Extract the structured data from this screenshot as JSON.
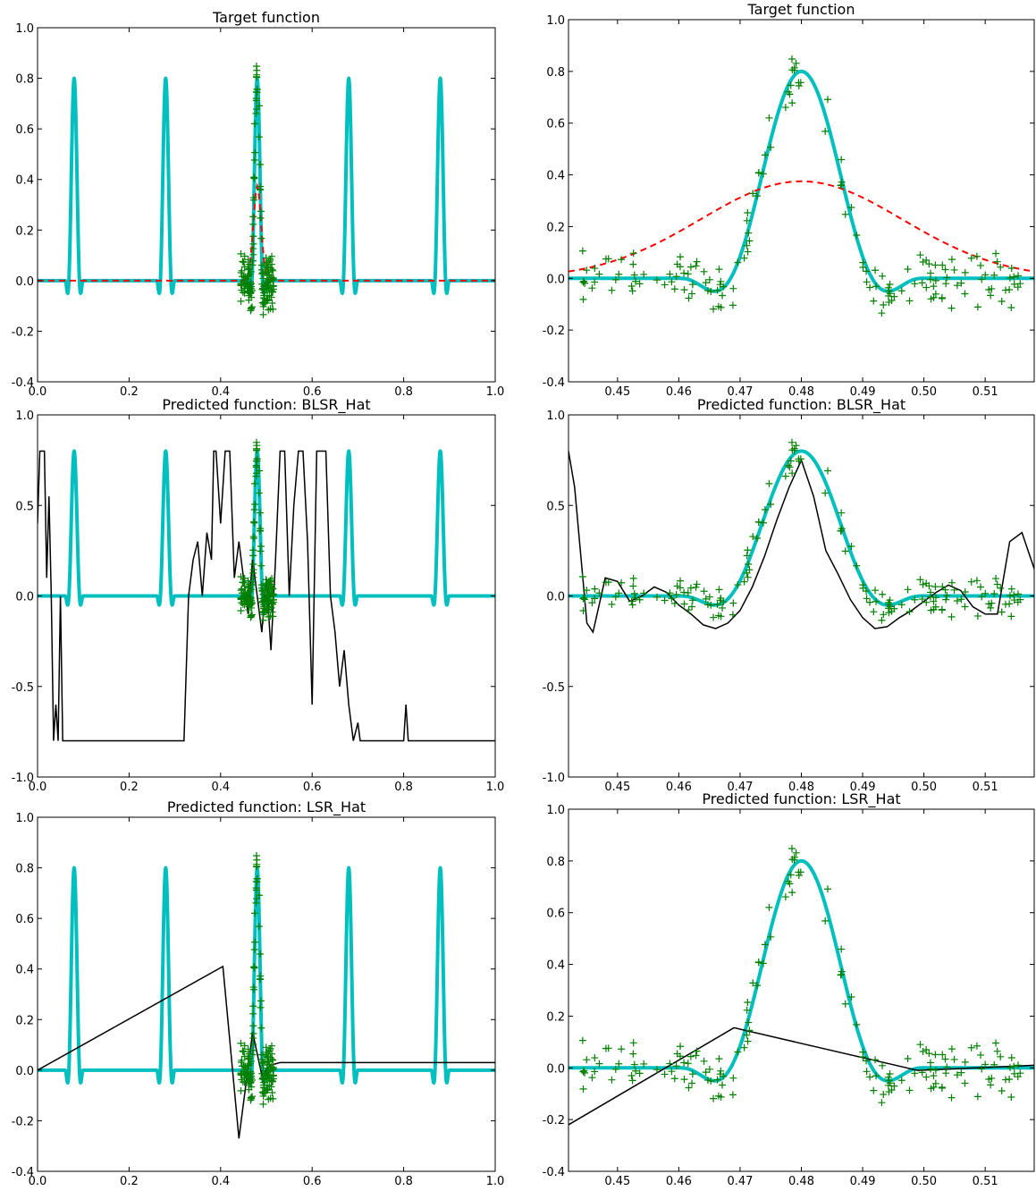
{
  "colors": {
    "target": "#00bfbf",
    "prediction": "#000000",
    "samples": "#008000",
    "gaussian": "#ff0000",
    "axes": "#000000",
    "background": "#ffffff"
  },
  "chart_data": [
    {
      "type": "line",
      "title": "Target function",
      "xlim": [
        0.0,
        1.0
      ],
      "ylim": [
        -0.4,
        1.0
      ],
      "xticks": [
        "0.0",
        "0.2",
        "0.4",
        "0.6",
        "0.8",
        "1.0"
      ],
      "yticks": [
        "-0.4",
        "-0.2",
        "0.0",
        "0.2",
        "0.4",
        "0.6",
        "0.8",
        "1.0"
      ],
      "grid": false,
      "legend": "none",
      "series": [
        {
          "kind": "target",
          "color": "#00bfbf",
          "peak_centers": [
            0.08,
            0.28,
            0.48,
            0.68,
            0.88
          ],
          "peak_height": 0.8,
          "peak_halfwidth": 0.02,
          "trough_depth": -0.18
        },
        {
          "kind": "gaussian",
          "color": "#ff0000",
          "style": "dashed",
          "x": [
            0.44,
            0.45,
            0.46,
            0.47,
            0.48,
            0.49,
            0.5,
            0.51,
            0.52
          ],
          "y": [
            0.0,
            0.02,
            0.08,
            0.25,
            0.38,
            0.25,
            0.08,
            0.02,
            0.0
          ]
        },
        {
          "kind": "samples",
          "color": "#008000",
          "marker": "+",
          "x_center": 0.48,
          "x_spread": 0.02
        }
      ]
    },
    {
      "type": "line",
      "title": "Target function",
      "xlim": [
        0.442,
        0.518
      ],
      "ylim": [
        -0.4,
        1.0
      ],
      "xticks": [
        "0.45",
        "0.46",
        "0.47",
        "0.48",
        "0.49",
        "0.50",
        "0.51"
      ],
      "yticks": [
        "-0.4",
        "-0.2",
        "0.0",
        "0.2",
        "0.4",
        "0.6",
        "0.8",
        "1.0"
      ],
      "grid": false,
      "legend": "none",
      "series": [
        {
          "kind": "target",
          "color": "#00bfbf",
          "peak_centers": [
            0.48
          ],
          "peak_height": 0.8,
          "peak_halfwidth": 0.02,
          "trough_depth": -0.18
        },
        {
          "kind": "gaussian",
          "color": "#ff0000",
          "style": "dashed",
          "x": [
            0.442,
            0.45,
            0.46,
            0.47,
            0.48,
            0.49,
            0.5,
            0.51,
            0.518
          ],
          "y": [
            0.03,
            0.07,
            0.16,
            0.3,
            0.375,
            0.3,
            0.16,
            0.07,
            0.025
          ]
        },
        {
          "kind": "samples",
          "color": "#008000",
          "marker": "+",
          "x_center": 0.48,
          "x_spread": 0.02
        }
      ]
    },
    {
      "type": "line",
      "title": "Predicted function: BLSR_Hat",
      "xlim": [
        0.0,
        1.0
      ],
      "ylim": [
        -1.0,
        1.0
      ],
      "xticks": [
        "0.0",
        "0.2",
        "0.4",
        "0.6",
        "0.8",
        "1.0"
      ],
      "yticks": [
        "-1.0",
        "-0.5",
        "0.0",
        "0.5",
        "1.0"
      ],
      "grid": false,
      "legend": "none",
      "series": [
        {
          "kind": "target",
          "color": "#00bfbf",
          "peak_centers": [
            0.08,
            0.28,
            0.48,
            0.68,
            0.88
          ],
          "peak_height": 0.8,
          "peak_halfwidth": 0.02,
          "trough_depth": -0.18
        },
        {
          "kind": "prediction",
          "color": "#000000",
          "x": [
            0.0,
            0.005,
            0.01,
            0.015,
            0.02,
            0.025,
            0.03,
            0.035,
            0.04,
            0.045,
            0.05,
            0.055,
            0.06,
            0.065,
            0.07,
            0.075,
            0.08,
            0.2,
            0.3,
            0.32,
            0.33,
            0.34,
            0.35,
            0.36,
            0.37,
            0.38,
            0.385,
            0.39,
            0.4,
            0.41,
            0.42,
            0.43,
            0.44,
            0.45,
            0.46,
            0.47,
            0.48,
            0.49,
            0.5,
            0.51,
            0.52,
            0.53,
            0.54,
            0.55,
            0.56,
            0.57,
            0.58,
            0.59,
            0.6,
            0.61,
            0.62,
            0.63,
            0.64,
            0.65,
            0.66,
            0.67,
            0.68,
            0.69,
            0.7,
            0.705,
            0.71,
            0.72,
            0.8,
            0.805,
            0.81,
            0.815,
            0.82,
            1.0
          ],
          "y": [
            0.4,
            0.8,
            0.8,
            0.8,
            0.1,
            0.55,
            0.0,
            -0.8,
            -0.6,
            -0.8,
            0.0,
            -0.8,
            -0.8,
            -0.8,
            -0.8,
            -0.8,
            -0.8,
            -0.8,
            -0.8,
            -0.8,
            0.0,
            0.2,
            0.3,
            0.0,
            0.35,
            0.2,
            0.8,
            0.8,
            0.4,
            0.8,
            0.8,
            0.1,
            0.3,
            0.1,
            -0.1,
            0.2,
            0.0,
            -0.2,
            0.1,
            -0.3,
            0.2,
            0.8,
            0.8,
            0.0,
            0.5,
            0.8,
            0.8,
            0.3,
            -0.6,
            0.8,
            0.8,
            0.8,
            0.0,
            -0.2,
            -0.5,
            -0.3,
            -0.6,
            -0.8,
            -0.7,
            -0.8,
            -0.8,
            -0.8,
            -0.8,
            -0.6,
            -0.8,
            -0.8,
            -0.8,
            -0.8
          ]
        },
        {
          "kind": "samples",
          "color": "#008000",
          "marker": "+",
          "x_center": 0.48,
          "x_spread": 0.02
        }
      ]
    },
    {
      "type": "line",
      "title": "Predicted function: BLSR_Hat",
      "xlim": [
        0.442,
        0.518
      ],
      "ylim": [
        -1.0,
        1.0
      ],
      "xticks": [
        "0.45",
        "0.46",
        "0.47",
        "0.48",
        "0.49",
        "0.50",
        "0.51"
      ],
      "yticks": [
        "-1.0",
        "-0.5",
        "0.0",
        "0.5",
        "1.0"
      ],
      "grid": false,
      "legend": "none",
      "series": [
        {
          "kind": "target",
          "color": "#00bfbf",
          "peak_centers": [
            0.48
          ],
          "peak_height": 0.8,
          "peak_halfwidth": 0.02,
          "trough_depth": -0.18
        },
        {
          "kind": "prediction",
          "color": "#000000",
          "x": [
            0.442,
            0.443,
            0.445,
            0.446,
            0.448,
            0.45,
            0.452,
            0.454,
            0.456,
            0.458,
            0.46,
            0.462,
            0.464,
            0.466,
            0.468,
            0.47,
            0.472,
            0.474,
            0.476,
            0.478,
            0.48,
            0.482,
            0.484,
            0.486,
            0.488,
            0.49,
            0.492,
            0.494,
            0.496,
            0.498,
            0.5,
            0.502,
            0.504,
            0.506,
            0.508,
            0.51,
            0.512,
            0.514,
            0.516,
            0.518
          ],
          "y": [
            0.8,
            0.6,
            -0.15,
            -0.2,
            0.1,
            0.08,
            -0.03,
            0.0,
            0.05,
            0.02,
            -0.05,
            -0.1,
            -0.16,
            -0.18,
            -0.15,
            -0.08,
            0.05,
            0.22,
            0.42,
            0.6,
            0.75,
            0.55,
            0.25,
            0.12,
            -0.02,
            -0.12,
            -0.18,
            -0.17,
            -0.12,
            -0.08,
            -0.03,
            0.02,
            0.06,
            0.03,
            -0.06,
            -0.1,
            -0.1,
            0.3,
            0.35,
            0.15
          ]
        },
        {
          "kind": "samples",
          "color": "#008000",
          "marker": "+",
          "x_center": 0.48,
          "x_spread": 0.02
        }
      ]
    },
    {
      "type": "line",
      "title": "Predicted function: LSR_Hat",
      "xlim": [
        0.0,
        1.0
      ],
      "ylim": [
        -0.4,
        1.0
      ],
      "xticks": [
        "0.0",
        "0.2",
        "0.4",
        "0.6",
        "0.8",
        "1.0"
      ],
      "yticks": [
        "-0.4",
        "-0.2",
        "0.0",
        "0.2",
        "0.4",
        "0.6",
        "0.8",
        "1.0"
      ],
      "grid": false,
      "legend": "none",
      "series": [
        {
          "kind": "target",
          "color": "#00bfbf",
          "peak_centers": [
            0.08,
            0.28,
            0.48,
            0.68,
            0.88
          ],
          "peak_height": 0.8,
          "peak_halfwidth": 0.02,
          "trough_depth": -0.18
        },
        {
          "kind": "prediction",
          "color": "#000000",
          "x": [
            0.0,
            0.405,
            0.44,
            0.47,
            0.49,
            0.51,
            0.53,
            0.54,
            1.0
          ],
          "y": [
            0.0,
            0.41,
            -0.27,
            0.15,
            -0.02,
            0.02,
            0.03,
            0.03,
            0.03
          ]
        },
        {
          "kind": "samples",
          "color": "#008000",
          "marker": "+",
          "x_center": 0.48,
          "x_spread": 0.02
        }
      ]
    },
    {
      "type": "line",
      "title": "Predicted function: LSR_Hat",
      "xlim": [
        0.442,
        0.518
      ],
      "ylim": [
        -0.4,
        1.0
      ],
      "xticks": [
        "0.45",
        "0.46",
        "0.47",
        "0.48",
        "0.49",
        "0.50",
        "0.51"
      ],
      "yticks": [
        "-0.4",
        "-0.2",
        "0.0",
        "0.2",
        "0.4",
        "0.6",
        "0.8",
        "1.0"
      ],
      "grid": false,
      "legend": "none",
      "series": [
        {
          "kind": "target",
          "color": "#00bfbf",
          "peak_centers": [
            0.48
          ],
          "peak_height": 0.8,
          "peak_halfwidth": 0.02,
          "trough_depth": -0.18
        },
        {
          "kind": "prediction",
          "color": "#000000",
          "x": [
            0.442,
            0.469,
            0.499,
            0.518
          ],
          "y": [
            -0.22,
            0.155,
            -0.01,
            0.01
          ]
        },
        {
          "kind": "samples",
          "color": "#008000",
          "marker": "+",
          "x_center": 0.48,
          "x_spread": 0.02
        }
      ]
    }
  ]
}
